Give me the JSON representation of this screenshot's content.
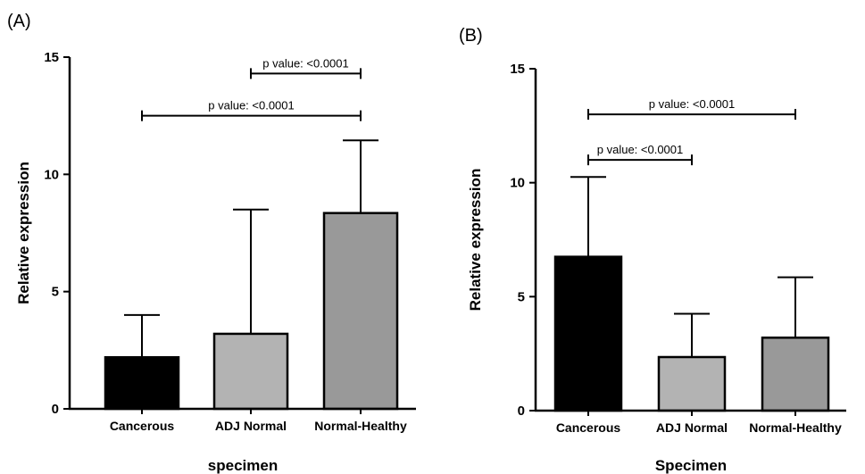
{
  "panels": [
    {
      "letter": "(A)"
    },
    {
      "letter": "(B)"
    }
  ],
  "chart_data": [
    {
      "type": "bar",
      "title": "",
      "xlabel": "specimen",
      "ylabel": "Relative expression",
      "ylim": [
        0,
        15
      ],
      "yticks": [
        "0",
        "5",
        "10",
        "15"
      ],
      "categories": [
        "Cancerous",
        "ADJ Normal",
        "Normal-Healthy"
      ],
      "values": [
        2.2,
        3.2,
        8.35
      ],
      "error_upper": [
        4.0,
        8.5,
        11.45
      ],
      "colors": [
        "#000000",
        "#b3b3b3",
        "#999999"
      ],
      "significance": [
        {
          "from": 1,
          "to": 2,
          "y": 14.3,
          "label": "p value: <0.0001"
        },
        {
          "from": 0,
          "to": 2,
          "y": 12.5,
          "label": "p value: <0.0001"
        }
      ]
    },
    {
      "type": "bar",
      "title": "",
      "xlabel": "Specimen",
      "ylabel": "Relative expression",
      "ylim": [
        0,
        15
      ],
      "yticks": [
        "0",
        "5",
        "10",
        "15"
      ],
      "categories": [
        "Cancerous",
        "ADJ Normal",
        "Normal-Healthy"
      ],
      "values": [
        6.75,
        2.35,
        3.2
      ],
      "error_upper": [
        10.25,
        4.25,
        5.85
      ],
      "colors": [
        "#000000",
        "#b3b3b3",
        "#999999"
      ],
      "significance": [
        {
          "from": 0,
          "to": 2,
          "y": 13.0,
          "label": "p value: <0.0001"
        },
        {
          "from": 0,
          "to": 1,
          "y": 11.0,
          "label": "p value: <0.0001"
        }
      ]
    }
  ]
}
